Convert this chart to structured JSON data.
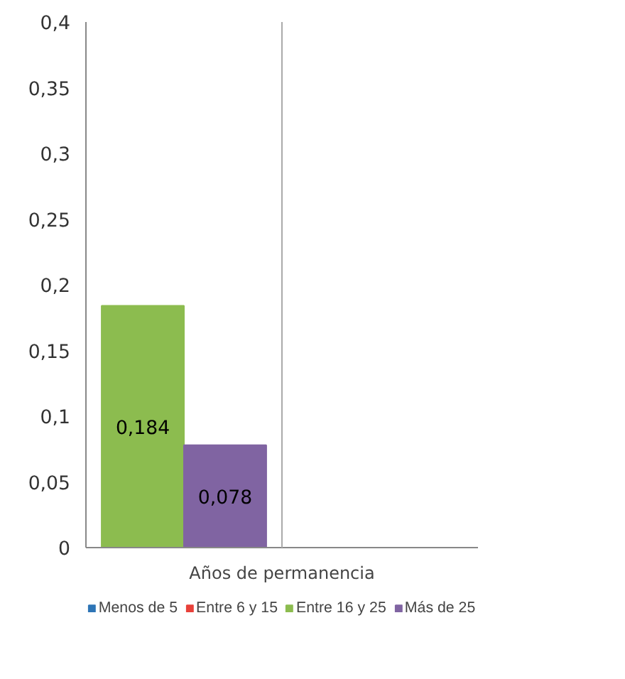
{
  "chart_data": {
    "type": "bar",
    "xlabel": "Años de permanencia",
    "categories": [
      null,
      null
    ],
    "series": [
      {
        "name": "Menos de 5",
        "color": "#2e75b6",
        "values": [
          null,
          null
        ]
      },
      {
        "name": "Entre 6 y 15",
        "color": "#e8413a",
        "values": [
          null,
          null
        ]
      },
      {
        "name": "Entre 16 y 25",
        "color": "#8cbc4f",
        "values": [
          0.184,
          null
        ],
        "value_labels": [
          "0,184",
          null
        ]
      },
      {
        "name": "Más de 25",
        "color": "#8064a2",
        "values": [
          0.078,
          null
        ],
        "value_labels": [
          "0,078",
          null
        ]
      }
    ],
    "ylim": [
      0,
      0.4
    ],
    "yticks": [
      0,
      {
        "value": 0.05,
        "label": "0,05"
      },
      {
        "value": 0.1,
        "label": "0,1"
      },
      {
        "value": 0.15,
        "label": "0,15"
      },
      {
        "value": 0.2,
        "label": "0,2"
      },
      {
        "value": 0.25,
        "label": "0,25"
      },
      {
        "value": 0.3,
        "label": "0,3"
      },
      {
        "value": 0.35,
        "label": "0,35"
      },
      {
        "value": 0.4,
        "label": "0,4"
      }
    ],
    "grid": "x",
    "legend": "bottom"
  }
}
